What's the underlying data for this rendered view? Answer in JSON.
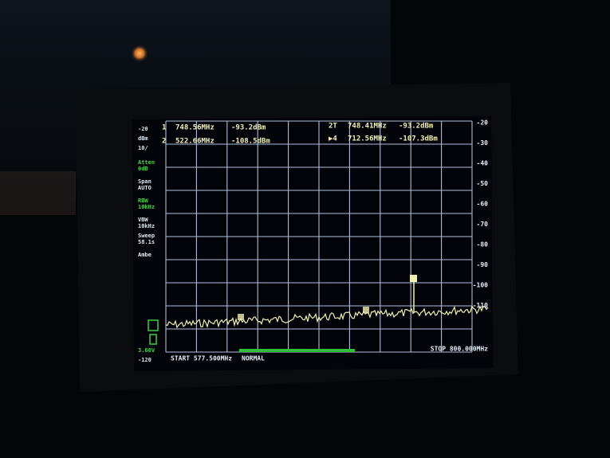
{
  "screen": {
    "left_labels": [
      {
        "text": "-20",
        "green": false
      },
      {
        "text": "dBm",
        "green": false
      },
      {
        "text": "10/",
        "green": false
      },
      {
        "text": "Atten",
        "green": true
      },
      {
        "text": "0dB",
        "green": true
      },
      {
        "text": "Span",
        "green": false
      },
      {
        "text": "AUTO",
        "green": false
      },
      {
        "text": "RBW",
        "green": true
      },
      {
        "text": "10kHz",
        "green": true
      },
      {
        "text": "VBW",
        "green": false
      },
      {
        "text": "10kHz",
        "green": false
      },
      {
        "text": "Sweep",
        "green": false
      },
      {
        "text": "58.1s",
        "green": false
      },
      {
        "text": "Ambe",
        "green": false
      },
      {
        "text": "3.60V",
        "green": true
      },
      {
        "text": "-120",
        "green": false
      }
    ],
    "markers": [
      {
        "id": "1",
        "freq": "748.56MHz",
        "level": "-93.2dBm"
      },
      {
        "id": "2",
        "freq": "522.66MHz",
        "level": "-108.5dBm"
      },
      {
        "id": "2T",
        "freq": "748.41MHz",
        "level": "-93.2dBm"
      },
      {
        "id": "▶4",
        "freq": "712.56MHz",
        "level": "-107.3dBm"
      }
    ],
    "scale": [
      "-20",
      "-30",
      "-40",
      "-50",
      "-60",
      "-70",
      "-80",
      "-90",
      "-100",
      "-110"
    ],
    "start": "START 577.500MHz",
    "status": "NORMAL",
    "stop": "STOP 800.000MHz"
  }
}
